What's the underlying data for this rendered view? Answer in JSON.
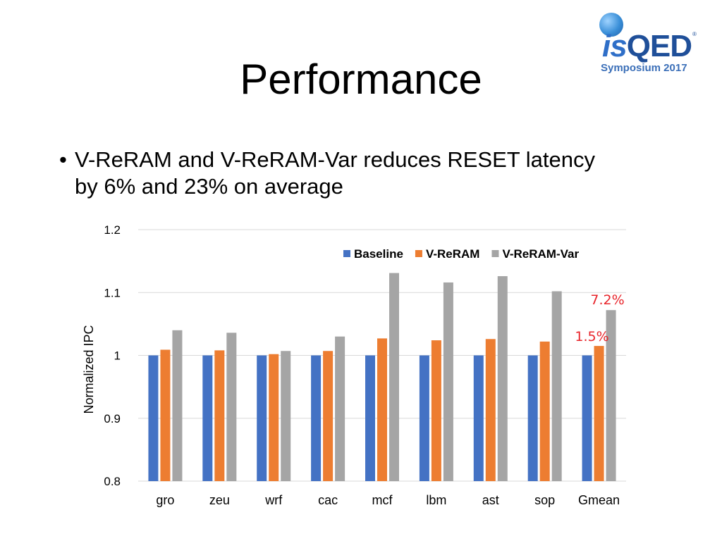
{
  "slide": {
    "title": "Performance",
    "bullet_glyph": "•",
    "bullet_line1": "V-ReRAM and V-ReRAM-Var reduces RESET latency",
    "bullet_line2": "by 6% and 23% on average"
  },
  "logo": {
    "word_part1": "is",
    "word_part2": "QED",
    "registered": "®",
    "subtitle": "Symposium 2017"
  },
  "colors": {
    "Baseline": "#4472c4",
    "V-ReRAM": "#ed7d31",
    "V-ReRAM-Var": "#a5a5a5",
    "annotation": "#e8242a",
    "grid": "#d9d9d9"
  },
  "chart_data": {
    "type": "bar",
    "title": "",
    "xlabel": "",
    "ylabel": "Normalized IPC",
    "ylim": [
      0.8,
      1.2
    ],
    "yticks": [
      "0.8",
      "0.9",
      "1",
      "1.1",
      "1.2"
    ],
    "grid": true,
    "legend_position": "top-right",
    "categories": [
      "gro",
      "zeu",
      "wrf",
      "cac",
      "mcf",
      "lbm",
      "ast",
      "sop",
      "Gmean"
    ],
    "series": [
      {
        "name": "Baseline",
        "values": [
          1.0,
          1.0,
          1.0,
          1.0,
          1.0,
          1.0,
          1.0,
          1.0,
          1.0
        ]
      },
      {
        "name": "V-ReRAM",
        "values": [
          1.009,
          1.008,
          1.002,
          1.007,
          1.027,
          1.024,
          1.026,
          1.022,
          1.015
        ]
      },
      {
        "name": "V-ReRAM-Var",
        "values": [
          1.04,
          1.036,
          1.007,
          1.03,
          1.131,
          1.116,
          1.126,
          1.102,
          1.072
        ]
      }
    ],
    "annotations": [
      {
        "text": "7.2%",
        "category": "Gmean",
        "series": "V-ReRAM-Var"
      },
      {
        "text": "1.5%",
        "category": "Gmean",
        "series": "V-ReRAM"
      }
    ]
  }
}
